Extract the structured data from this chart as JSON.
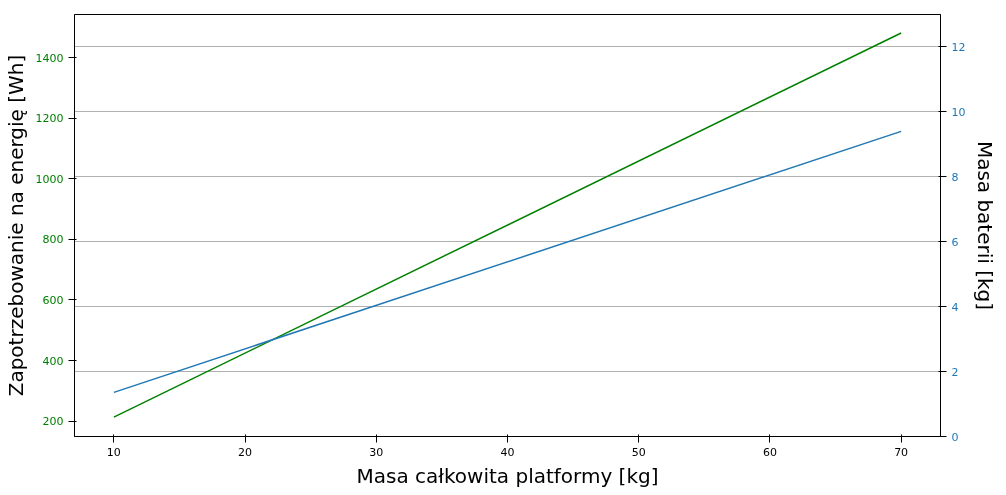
{
  "chart_data": {
    "type": "line",
    "xlabel": "Masa całkowita platformy [kg]",
    "ylabel": "Zapotrzebowanie na energię [Wh]",
    "y2label": "Masa baterii [kg]",
    "xlim": [
      7,
      73
    ],
    "xticks": [
      10,
      20,
      30,
      40,
      50,
      60,
      70
    ],
    "ylim": [
      149,
      1543
    ],
    "yticks": [
      200,
      400,
      600,
      800,
      1000,
      1200,
      1400
    ],
    "y2lim": [
      0,
      13
    ],
    "y2ticks": [
      0,
      2,
      4,
      6,
      8,
      10,
      12
    ],
    "grid": "y2",
    "x": [
      10,
      70
    ],
    "series": [
      {
        "color": "#008000",
        "values": [
          213,
          1482
        ]
      },
      {
        "color": "#1f77b4",
        "axis": "y2",
        "values": [
          1.36,
          9.4
        ]
      }
    ]
  }
}
